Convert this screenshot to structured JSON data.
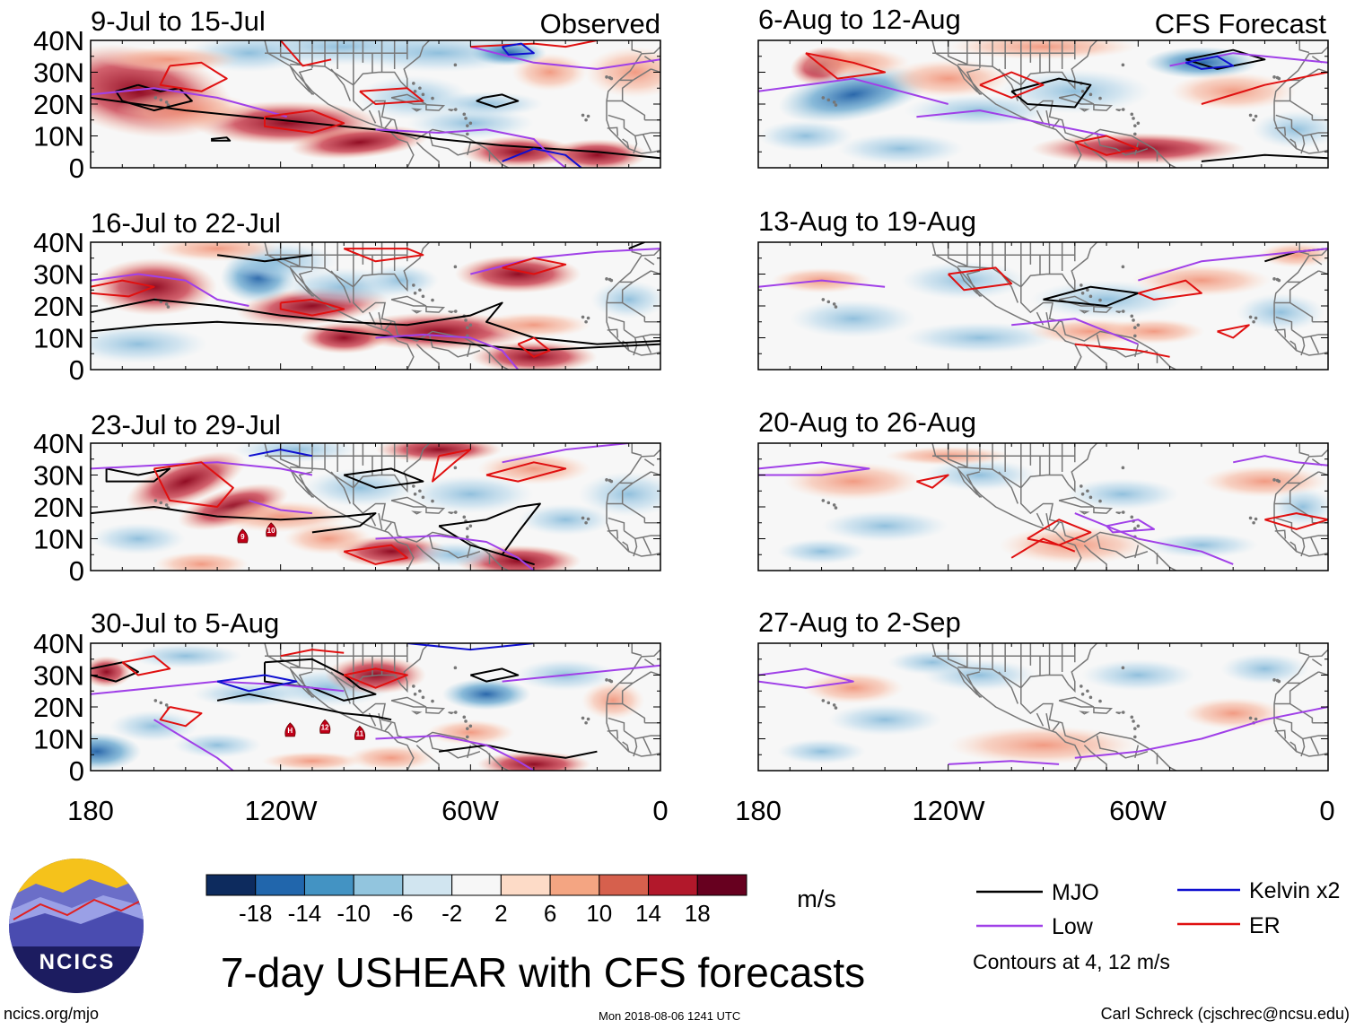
{
  "title": "7-day USHEAR with CFS forecasts",
  "left_column_label": "Observed",
  "right_column_label": "CFS Forecast",
  "lat_labels": [
    "40N",
    "30N",
    "20N",
    "10N",
    "0"
  ],
  "lon_labels": [
    "180",
    "120W",
    "60W",
    "0"
  ],
  "observed_panels": [
    {
      "period": "9-Jul to 15-Jul"
    },
    {
      "period": "16-Jul to 22-Jul"
    },
    {
      "period": "23-Jul to 29-Jul",
      "storms": [
        "9",
        "10"
      ]
    },
    {
      "period": "30-Jul to 5-Aug",
      "storms": [
        "H",
        "12",
        "11"
      ]
    }
  ],
  "forecast_panels": [
    {
      "period": "6-Aug to 12-Aug"
    },
    {
      "period": "13-Aug to 19-Aug"
    },
    {
      "period": "20-Aug to 26-Aug"
    },
    {
      "period": "27-Aug to 2-Sep"
    }
  ],
  "colorbar": {
    "unit": "m/s",
    "ticks": [
      "-18",
      "-14",
      "-10",
      "-6",
      "-2",
      "2",
      "6",
      "10",
      "14",
      "18"
    ],
    "colors": [
      "#0d2b5e",
      "#2166ac",
      "#4393c3",
      "#92c5de",
      "#d1e5f0",
      "#f7f7f7",
      "#fddbc7",
      "#f4a582",
      "#d6604d",
      "#b2182b",
      "#67001f"
    ]
  },
  "legend": {
    "items": [
      {
        "label": "MJO",
        "color": "#000000"
      },
      {
        "label": "Kelvin x2",
        "color": "#1010d0"
      },
      {
        "label": "Low",
        "color": "#a040e8"
      },
      {
        "label": "ER",
        "color": "#e01010"
      }
    ],
    "note": "Contours at 4, 12 m/s"
  },
  "logo": {
    "text": "NCICS"
  },
  "footer": {
    "left": "ncics.org/mjo",
    "center": "Mon 2018-08-06 1241 UTC",
    "right": "Carl Schreck (cjschrec@ncsu.edu)"
  }
}
